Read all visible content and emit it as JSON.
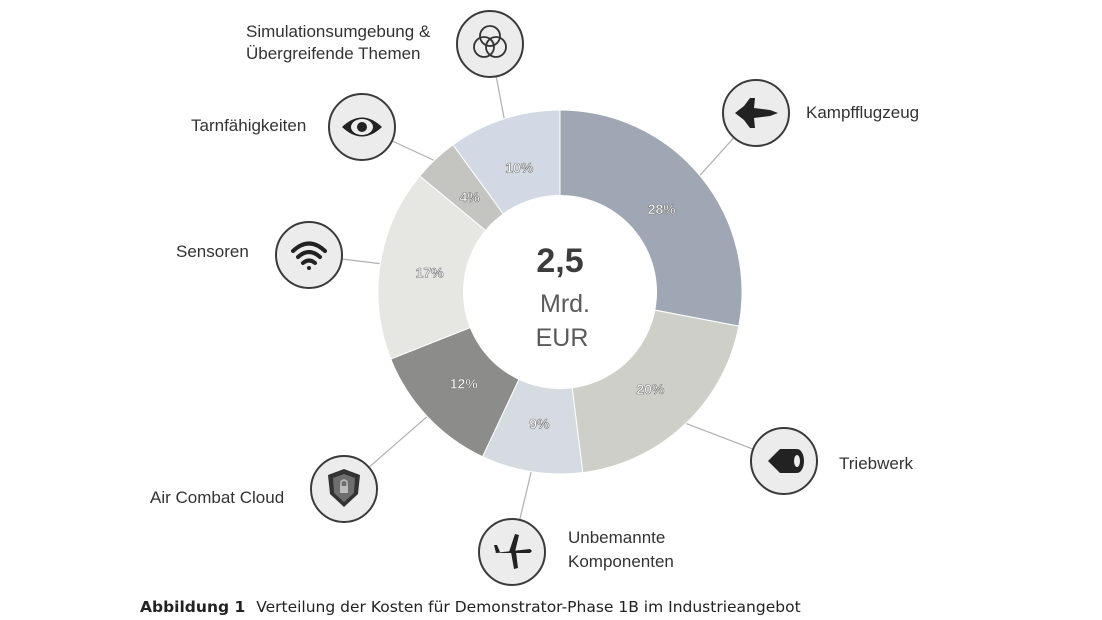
{
  "chart_data": {
    "type": "donut",
    "center": {
      "value": "2,5",
      "unit_line1": "Mrd.",
      "unit_line2": "EUR"
    },
    "slices": [
      {
        "label": "Kampfflugzeug",
        "value": 28,
        "value_label": "28%",
        "color": "#9ea7b3",
        "icon": "fighter-jet-icon"
      },
      {
        "label": "Triebwerk",
        "value": 20,
        "value_label": "20%",
        "color": "#cfcfca",
        "icon": "jet-engine-icon"
      },
      {
        "label": "Unbemannte Komponenten",
        "value": 9,
        "value_label": "9%",
        "color": "#d6dbe1",
        "icon": "drone-icon"
      },
      {
        "label": "Air Combat Cloud",
        "value": 12,
        "value_label": "12%",
        "color": "#8c8c8a",
        "icon": "shield-icon"
      },
      {
        "label": "Sensoren",
        "value": 17,
        "value_label": "17%",
        "color": "#e6e6e3",
        "icon": "wifi-sensor-icon"
      },
      {
        "label": "Tarnfähigkeiten",
        "value": 4,
        "value_label": "4%",
        "color": "#c4c4c0",
        "icon": "eye-icon"
      },
      {
        "label": "Simulationsumgebung & Übergreifende Themen",
        "value": 10,
        "value_label": "10%",
        "color": "#d3d9e4",
        "icon": "venn-circles-icon"
      }
    ]
  },
  "labels": {
    "kampfflugzeug": "Kampfflugzeug",
    "triebwerk": "Triebwerk",
    "unbemannte_line1": "Unbemannte",
    "unbemannte_line2": "Komponenten",
    "air_combat_cloud": "Air Combat Cloud",
    "sensoren": "Sensoren",
    "tarnfaehigkeiten": "Tarnfähigkeiten",
    "simulation_line1": "Simulationsumgebung &",
    "simulation_line2": "Übergreifende Themen"
  },
  "caption": {
    "label": "Abbildung 1",
    "text": "Verteilung der Kosten für Demonstrator-Phase 1B im Industrieangebot"
  }
}
